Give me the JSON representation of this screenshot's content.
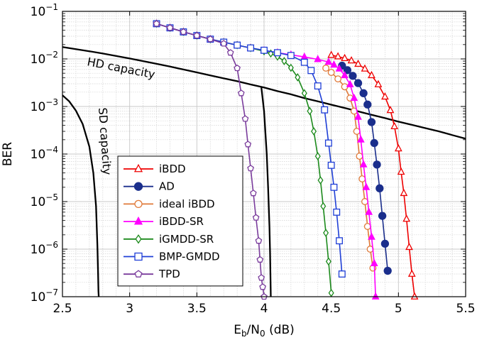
{
  "chart_data": {
    "type": "line",
    "title": "",
    "xlabel": "Eb/N0 (dB)",
    "ylabel": "BER",
    "xlim": [
      2.5,
      5.5
    ],
    "ylim": [
      1e-07,
      0.1
    ],
    "yscale": "log",
    "grid": true,
    "legend_position": "bottom-left",
    "xticks": [
      2.5,
      3,
      3.5,
      4,
      4.5,
      5,
      5.5
    ],
    "yticks": [
      {
        "value": 1e-07,
        "mant": "10",
        "exp": "−7"
      },
      {
        "value": 1e-06,
        "mant": "10",
        "exp": "−6"
      },
      {
        "value": 1e-05,
        "mant": "10",
        "exp": "−5"
      },
      {
        "value": 0.0001,
        "mant": "10",
        "exp": "−4"
      },
      {
        "value": 0.001,
        "mant": "10",
        "exp": "−3"
      },
      {
        "value": 0.01,
        "mant": "10",
        "exp": "−2"
      },
      {
        "value": 0.1,
        "mant": "10",
        "exp": "−1"
      }
    ],
    "curves": [
      {
        "name": "HD capacity",
        "color": "#000000",
        "x": [
          2.5,
          2.6,
          2.7,
          2.8,
          2.9,
          3.0,
          3.1,
          3.2,
          3.3,
          3.4,
          3.5,
          3.6,
          3.7,
          3.8,
          3.9,
          4.0,
          4.1,
          4.2,
          4.3,
          4.4,
          4.5,
          4.6,
          4.7,
          4.8,
          4.9,
          5.0,
          5.1,
          5.2,
          5.3,
          5.4,
          5.5
        ],
        "y": [
          0.0178,
          0.016,
          0.0145,
          0.013,
          0.0115,
          0.0102,
          0.009,
          0.0079,
          0.0069,
          0.006,
          0.0052,
          0.0045,
          0.0039,
          0.0034,
          0.0029,
          0.0025,
          0.0021,
          0.0018,
          0.0015,
          0.00128,
          0.00109,
          0.00093,
          0.00079,
          0.00067,
          0.00057,
          0.00048,
          0.00041,
          0.00035,
          0.0003,
          0.00025,
          0.00021
        ]
      },
      {
        "name": "SD capacity",
        "color": "#000000",
        "x": [
          2.5,
          2.55,
          2.6,
          2.65,
          2.7,
          2.73,
          2.75,
          2.76,
          2.765,
          2.768,
          2.77
        ],
        "y": [
          0.00172,
          0.00128,
          0.00082,
          0.00043,
          0.000143,
          4e-05,
          8e-06,
          1.2e-06,
          3e-07,
          1.3e-07,
          1e-07
        ]
      },
      {
        "name": "SD capacity right",
        "color": "#000000",
        "x": [
          3.98,
          4.0,
          4.02,
          4.03,
          4.04,
          4.045,
          4.05
        ],
        "y": [
          0.00252,
          0.0008,
          0.0001,
          2e-05,
          3e-06,
          8e-07,
          1e-07
        ]
      }
    ],
    "series": [
      {
        "name": "iBDD",
        "color": "#ee0000",
        "marker": "triangle",
        "filled": false,
        "x": [
          4.5,
          4.55,
          4.6,
          4.65,
          4.7,
          4.75,
          4.8,
          4.85,
          4.9,
          4.94,
          4.97,
          5.0,
          5.02,
          5.04,
          5.06,
          5.08,
          5.1,
          5.12
        ],
        "y": [
          0.012,
          0.0112,
          0.0103,
          0.0092,
          0.0078,
          0.0062,
          0.0045,
          0.0029,
          0.0016,
          0.00083,
          0.00038,
          0.00013,
          4.2e-05,
          1.5e-05,
          4.3e-06,
          1.1e-06,
          3e-07,
          1e-07
        ]
      },
      {
        "name": "AD",
        "color": "#1a2e8c",
        "marker": "circle",
        "filled": true,
        "x": [
          4.58,
          4.62,
          4.66,
          4.7,
          4.74,
          4.77,
          4.8,
          4.82,
          4.84,
          4.86,
          4.88,
          4.9,
          4.92
        ],
        "y": [
          0.0072,
          0.0058,
          0.0044,
          0.0031,
          0.0019,
          0.0011,
          0.00047,
          0.00017,
          6e-05,
          1.9e-05,
          5e-06,
          1.3e-06,
          3.5e-07
        ]
      },
      {
        "name": "ideal iBDD",
        "color": "#e07a3a",
        "marker": "circle",
        "filled": false,
        "x": [
          4.46,
          4.5,
          4.55,
          4.6,
          4.64,
          4.67,
          4.69,
          4.71,
          4.73,
          4.75,
          4.77,
          4.79,
          4.81
        ],
        "y": [
          0.0064,
          0.0052,
          0.0038,
          0.0026,
          0.0015,
          0.0008,
          0.0003,
          9e-05,
          3e-05,
          1e-05,
          3e-06,
          1e-06,
          4e-07
        ]
      },
      {
        "name": "iBDD-SR",
        "color": "#ff00ff",
        "marker": "triangle",
        "filled": true,
        "x": [
          3.2,
          3.3,
          3.4,
          3.5,
          3.6,
          3.7,
          3.8,
          3.9,
          4.0,
          4.1,
          4.2,
          4.3,
          4.4,
          4.48,
          4.52,
          4.56,
          4.6,
          4.64,
          4.67,
          4.7,
          4.72,
          4.74,
          4.76,
          4.78,
          4.8,
          4.82,
          4.83
        ],
        "y": [
          0.055,
          0.045,
          0.037,
          0.031,
          0.026,
          0.0225,
          0.0195,
          0.017,
          0.015,
          0.0135,
          0.0122,
          0.011,
          0.0098,
          0.0086,
          0.0075,
          0.0062,
          0.0045,
          0.0029,
          0.0015,
          0.0006,
          0.0002,
          6e-05,
          2e-05,
          6e-06,
          1.8e-06,
          5e-07,
          1e-07
        ]
      },
      {
        "name": "iGMDD-SR",
        "color": "#1c8a1c",
        "marker": "diamond",
        "filled": false,
        "x": [
          3.2,
          3.3,
          3.4,
          3.5,
          3.6,
          3.7,
          3.8,
          3.9,
          4.0,
          4.05,
          4.1,
          4.15,
          4.2,
          4.25,
          4.3,
          4.34,
          4.37,
          4.4,
          4.42,
          4.44,
          4.46,
          4.48,
          4.5
        ],
        "y": [
          0.055,
          0.045,
          0.037,
          0.031,
          0.026,
          0.0225,
          0.0195,
          0.017,
          0.0145,
          0.013,
          0.0112,
          0.009,
          0.0065,
          0.0041,
          0.0019,
          0.0008,
          0.0003,
          9e-05,
          2.8e-05,
          8e-06,
          2.2e-06,
          5.5e-07,
          1.2e-07
        ]
      },
      {
        "name": "BMP-GMDD",
        "color": "#1f3fd6",
        "marker": "square",
        "filled": false,
        "x": [
          3.2,
          3.3,
          3.4,
          3.5,
          3.6,
          3.7,
          3.8,
          3.9,
          4.0,
          4.1,
          4.2,
          4.3,
          4.35,
          4.4,
          4.45,
          4.48,
          4.5,
          4.52,
          4.54,
          4.56,
          4.58
        ],
        "y": [
          0.055,
          0.045,
          0.037,
          0.031,
          0.026,
          0.0225,
          0.0195,
          0.017,
          0.0152,
          0.0135,
          0.0118,
          0.0085,
          0.0057,
          0.0027,
          0.00085,
          0.00017,
          5.8e-05,
          2e-05,
          6e-06,
          1.5e-06,
          3e-07
        ]
      },
      {
        "name": "TPD",
        "color": "#7a3c9c",
        "marker": "pentagon",
        "filled": false,
        "x": [
          3.2,
          3.3,
          3.4,
          3.5,
          3.6,
          3.7,
          3.75,
          3.8,
          3.83,
          3.86,
          3.88,
          3.9,
          3.92,
          3.94,
          3.96,
          3.97,
          3.98,
          3.99,
          4.0
        ],
        "y": [
          0.055,
          0.045,
          0.037,
          0.031,
          0.026,
          0.021,
          0.0135,
          0.0064,
          0.0019,
          0.00055,
          0.00016,
          5e-05,
          1.5e-05,
          4.6e-06,
          1.5e-06,
          6e-07,
          2.5e-07,
          1.6e-07,
          1e-07
        ]
      }
    ],
    "annotations": {
      "hd_label": "HD capacity",
      "sd_label": "SD capacity"
    }
  }
}
